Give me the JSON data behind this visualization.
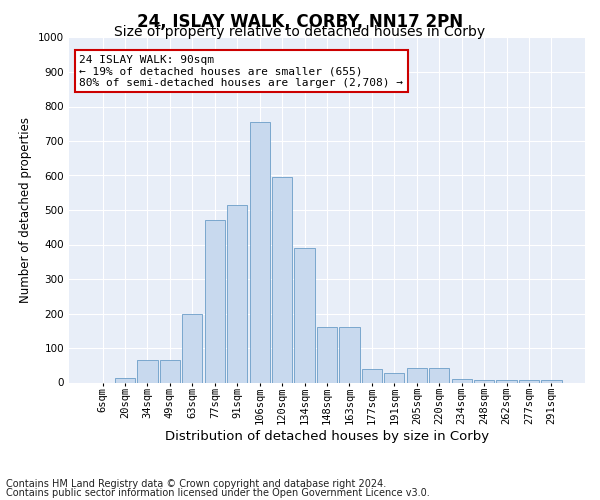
{
  "title1": "24, ISLAY WALK, CORBY, NN17 2PN",
  "title2": "Size of property relative to detached houses in Corby",
  "xlabel": "Distribution of detached houses by size in Corby",
  "ylabel": "Number of detached properties",
  "categories": [
    "6sqm",
    "20sqm",
    "34sqm",
    "49sqm",
    "63sqm",
    "77sqm",
    "91sqm",
    "106sqm",
    "120sqm",
    "134sqm",
    "148sqm",
    "163sqm",
    "177sqm",
    "191sqm",
    "205sqm",
    "220sqm",
    "234sqm",
    "248sqm",
    "262sqm",
    "277sqm",
    "291sqm"
  ],
  "values": [
    0,
    12,
    65,
    65,
    200,
    470,
    515,
    755,
    595,
    390,
    160,
    160,
    40,
    27,
    43,
    43,
    10,
    7,
    7,
    7,
    7
  ],
  "bar_color": "#c8d9ee",
  "bar_edge_color": "#6b9dc8",
  "annotation_text": "24 ISLAY WALK: 90sqm\n← 19% of detached houses are smaller (655)\n80% of semi-detached houses are larger (2,708) →",
  "annotation_box_color": "#ffffff",
  "annotation_box_edge_color": "#cc0000",
  "ylim": [
    0,
    1000
  ],
  "yticks": [
    0,
    100,
    200,
    300,
    400,
    500,
    600,
    700,
    800,
    900,
    1000
  ],
  "footer1": "Contains HM Land Registry data © Crown copyright and database right 2024.",
  "footer2": "Contains public sector information licensed under the Open Government Licence v3.0.",
  "fig_background_color": "#ffffff",
  "plot_bg_color": "#e8eef8",
  "grid_color": "#ffffff",
  "title1_fontsize": 12,
  "title2_fontsize": 10,
  "xlabel_fontsize": 9.5,
  "ylabel_fontsize": 8.5,
  "tick_fontsize": 7.5,
  "annotation_fontsize": 8,
  "footer_fontsize": 7
}
